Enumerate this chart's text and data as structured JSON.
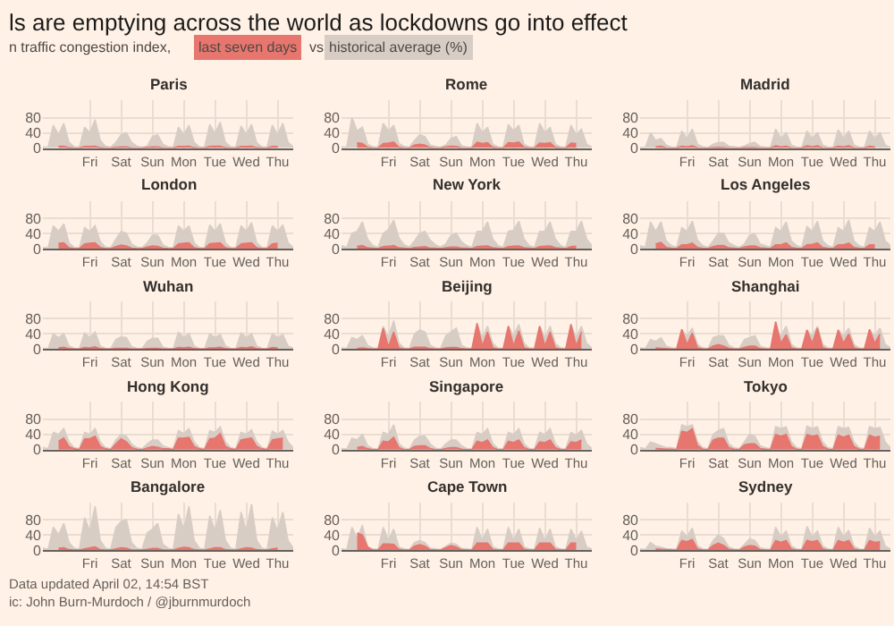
{
  "chart_data": [
    {
      "type": "area",
      "title": "Paris",
      "categories": [
        null,
        null,
        null,
        null,
        null,
        null,
        null,
        null,
        null,
        "Fri",
        null,
        null,
        null,
        null,
        null,
        "Sat",
        null,
        null,
        null,
        null,
        null,
        "Sun",
        null,
        null,
        null,
        null,
        null,
        "Mon",
        null,
        null,
        null,
        null,
        null,
        "Tue",
        null,
        null,
        null,
        null,
        null,
        "Wed",
        null,
        null,
        null,
        null,
        null,
        "Thu",
        null,
        null,
        null
      ],
      "ylim": [
        0,
        125
      ],
      "yticks": [
        0,
        40,
        80
      ],
      "grid": true,
      "series": [
        {
          "name": "historical average (%)",
          "color": "#d8cdc5",
          "values": [
            3,
            2,
            60,
            35,
            65,
            15,
            3,
            2,
            55,
            40,
            75,
            20,
            5,
            2,
            15,
            35,
            40,
            15,
            5,
            2,
            5,
            30,
            35,
            10,
            3,
            2,
            55,
            35,
            60,
            15,
            3,
            2,
            62,
            38,
            68,
            15,
            3,
            2,
            58,
            35,
            62,
            14,
            3,
            2,
            60,
            35,
            65,
            15,
            3
          ]
        },
        {
          "name": "last seven days",
          "color": "#e6766e",
          "values": [
            null,
            null,
            null,
            4,
            5,
            1,
            0,
            0,
            4,
            4,
            5,
            1,
            0,
            0,
            2,
            3,
            3,
            0,
            0,
            0,
            2,
            3,
            3,
            0,
            0,
            0,
            4,
            4,
            5,
            1,
            0,
            0,
            4,
            5,
            5,
            1,
            0,
            0,
            4,
            4,
            5,
            1,
            0,
            0,
            4,
            4,
            null,
            null,
            null
          ]
        }
      ]
    },
    {
      "type": "area",
      "title": "Rome",
      "categories": [
        null,
        null,
        null,
        null,
        null,
        null,
        null,
        null,
        null,
        "Fri",
        null,
        null,
        null,
        null,
        null,
        "Sat",
        null,
        null,
        null,
        null,
        null,
        "Sun",
        null,
        null,
        null,
        null,
        null,
        "Mon",
        null,
        null,
        null,
        null,
        null,
        "Tue",
        null,
        null,
        null,
        null,
        null,
        "Wed",
        null,
        null,
        null,
        null,
        null,
        "Thu",
        null,
        null,
        null
      ],
      "ylim": [
        0,
        125
      ],
      "yticks": [
        0,
        40,
        80
      ],
      "grid": true,
      "series": [
        {
          "color": "#d8cdc5",
          "values": [
            3,
            2,
            80,
            45,
            55,
            10,
            3,
            2,
            65,
            45,
            60,
            12,
            4,
            2,
            20,
            35,
            30,
            8,
            4,
            2,
            8,
            25,
            30,
            6,
            3,
            2,
            65,
            40,
            55,
            10,
            3,
            2,
            62,
            45,
            60,
            10,
            3,
            2,
            65,
            40,
            55,
            10,
            3,
            2,
            60,
            35,
            50,
            10,
            3
          ]
        },
        {
          "color": "#e6766e",
          "values": [
            null,
            null,
            null,
            14,
            12,
            2,
            0,
            0,
            12,
            13,
            16,
            2,
            0,
            0,
            8,
            10,
            8,
            1,
            0,
            0,
            3,
            5,
            4,
            0,
            0,
            0,
            15,
            12,
            14,
            2,
            0,
            0,
            14,
            13,
            16,
            2,
            0,
            0,
            13,
            12,
            14,
            2,
            0,
            0,
            13,
            12,
            null,
            null,
            null
          ]
        }
      ]
    },
    {
      "type": "area",
      "title": "Madrid",
      "categories": [
        null,
        null,
        null,
        null,
        null,
        null,
        null,
        null,
        null,
        "Fri",
        null,
        null,
        null,
        null,
        null,
        "Sat",
        null,
        null,
        null,
        null,
        null,
        "Sun",
        null,
        null,
        null,
        null,
        null,
        "Mon",
        null,
        null,
        null,
        null,
        null,
        "Tue",
        null,
        null,
        null,
        null,
        null,
        "Wed",
        null,
        null,
        null,
        null,
        null,
        "Thu",
        null,
        null,
        null
      ],
      "ylim": [
        0,
        125
      ],
      "yticks": [
        0,
        40,
        80
      ],
      "grid": true,
      "series": [
        {
          "color": "#d8cdc5",
          "values": [
            2,
            1,
            40,
            20,
            25,
            8,
            2,
            1,
            45,
            25,
            50,
            10,
            3,
            1,
            10,
            15,
            15,
            5,
            3,
            1,
            5,
            12,
            15,
            4,
            2,
            1,
            50,
            25,
            40,
            8,
            2,
            1,
            45,
            25,
            40,
            8,
            2,
            1,
            48,
            25,
            45,
            8,
            2,
            1,
            45,
            25,
            40,
            8,
            2
          ]
        },
        {
          "color": "#e6766e",
          "values": [
            null,
            null,
            null,
            3,
            5,
            0,
            0,
            0,
            5,
            3,
            6,
            0,
            0,
            0,
            1,
            2,
            1,
            0,
            0,
            0,
            1,
            1,
            1,
            0,
            0,
            0,
            6,
            3,
            5,
            0,
            0,
            0,
            6,
            3,
            6,
            0,
            0,
            0,
            5,
            3,
            6,
            0,
            0,
            0,
            5,
            3,
            null,
            null,
            null
          ]
        }
      ]
    },
    {
      "type": "area",
      "title": "London",
      "categories": [
        null,
        null,
        null,
        null,
        null,
        null,
        null,
        null,
        null,
        "Fri",
        null,
        null,
        null,
        null,
        null,
        "Sat",
        null,
        null,
        null,
        null,
        null,
        "Sun",
        null,
        null,
        null,
        null,
        null,
        "Mon",
        null,
        null,
        null,
        null,
        null,
        "Tue",
        null,
        null,
        null,
        null,
        null,
        "Wed",
        null,
        null,
        null,
        null,
        null,
        "Thu",
        null,
        null,
        null
      ],
      "ylim": [
        0,
        125
      ],
      "yticks": [
        0,
        40,
        80
      ],
      "grid": true,
      "series": [
        {
          "color": "#d8cdc5",
          "values": [
            3,
            2,
            60,
            45,
            65,
            15,
            3,
            2,
            55,
            45,
            60,
            18,
            4,
            2,
            25,
            45,
            40,
            12,
            4,
            2,
            15,
            35,
            35,
            10,
            3,
            2,
            60,
            45,
            60,
            15,
            3,
            2,
            62,
            45,
            65,
            15,
            3,
            2,
            60,
            45,
            68,
            15,
            3,
            2,
            60,
            45,
            62,
            15,
            3
          ]
        },
        {
          "color": "#e6766e",
          "values": [
            null,
            null,
            null,
            14,
            15,
            2,
            0,
            0,
            12,
            14,
            15,
            3,
            0,
            0,
            5,
            9,
            7,
            1,
            0,
            0,
            4,
            7,
            6,
            1,
            0,
            0,
            12,
            14,
            15,
            2,
            0,
            0,
            13,
            14,
            15,
            2,
            0,
            0,
            12,
            14,
            15,
            2,
            0,
            0,
            12,
            14,
            null,
            null,
            null
          ]
        }
      ]
    },
    {
      "type": "area",
      "title": "New York",
      "categories": [
        null,
        null,
        null,
        null,
        null,
        null,
        null,
        null,
        null,
        "Fri",
        null,
        null,
        null,
        null,
        null,
        "Sat",
        null,
        null,
        null,
        null,
        null,
        "Sun",
        null,
        null,
        null,
        null,
        null,
        "Mon",
        null,
        null,
        null,
        null,
        null,
        "Tue",
        null,
        null,
        null,
        null,
        null,
        "Wed",
        null,
        null,
        null,
        null,
        null,
        "Thu",
        null,
        null,
        null
      ],
      "ylim": [
        0,
        125
      ],
      "yticks": [
        0,
        40,
        80
      ],
      "grid": true,
      "series": [
        {
          "color": "#d8cdc5",
          "values": [
            8,
            3,
            40,
            45,
            70,
            25,
            8,
            3,
            40,
            50,
            75,
            28,
            10,
            4,
            20,
            40,
            45,
            22,
            10,
            4,
            12,
            35,
            40,
            18,
            8,
            3,
            45,
            45,
            70,
            25,
            8,
            3,
            45,
            48,
            72,
            25,
            8,
            3,
            45,
            45,
            70,
            25,
            8,
            3,
            45,
            45,
            72,
            25,
            8
          ]
        },
        {
          "color": "#e6766e",
          "values": [
            null,
            null,
            null,
            6,
            8,
            2,
            1,
            0,
            5,
            6,
            8,
            2,
            1,
            0,
            3,
            4,
            5,
            1,
            1,
            0,
            2,
            4,
            4,
            1,
            1,
            0,
            5,
            6,
            7,
            2,
            1,
            0,
            5,
            6,
            7,
            2,
            1,
            0,
            5,
            6,
            7,
            2,
            1,
            0,
            5,
            6,
            null,
            null,
            null
          ]
        }
      ]
    },
    {
      "type": "area",
      "title": "Los Angeles",
      "categories": [
        null,
        null,
        null,
        null,
        null,
        null,
        null,
        null,
        null,
        "Fri",
        null,
        null,
        null,
        null,
        null,
        "Sat",
        null,
        null,
        null,
        null,
        null,
        "Sun",
        null,
        null,
        null,
        null,
        null,
        "Mon",
        null,
        null,
        null,
        null,
        null,
        "Tue",
        null,
        null,
        null,
        null,
        null,
        "Wed",
        null,
        null,
        null,
        null,
        null,
        "Thu",
        null,
        null,
        null
      ],
      "ylim": [
        0,
        125
      ],
      "yticks": [
        0,
        40,
        80
      ],
      "grid": true,
      "series": [
        {
          "color": "#d8cdc5",
          "values": [
            8,
            3,
            70,
            45,
            70,
            20,
            8,
            3,
            55,
            45,
            72,
            22,
            8,
            3,
            20,
            40,
            40,
            15,
            8,
            3,
            12,
            35,
            38,
            12,
            8,
            3,
            55,
            45,
            70,
            20,
            8,
            3,
            58,
            45,
            72,
            20,
            8,
            3,
            55,
            45,
            75,
            20,
            8,
            3,
            55,
            45,
            70,
            20,
            8
          ]
        },
        {
          "color": "#e6766e",
          "values": [
            null,
            null,
            null,
            12,
            16,
            3,
            1,
            0,
            10,
            10,
            14,
            3,
            1,
            0,
            5,
            8,
            8,
            2,
            1,
            0,
            4,
            7,
            7,
            2,
            1,
            0,
            10,
            10,
            15,
            3,
            1,
            0,
            10,
            11,
            15,
            3,
            1,
            0,
            10,
            10,
            14,
            3,
            1,
            0,
            10,
            10,
            null,
            null,
            null
          ]
        }
      ]
    },
    {
      "type": "area",
      "title": "Wuhan",
      "categories": [
        null,
        null,
        null,
        null,
        null,
        null,
        null,
        null,
        null,
        "Fri",
        null,
        null,
        null,
        null,
        null,
        "Sat",
        null,
        null,
        null,
        null,
        null,
        "Sun",
        null,
        null,
        null,
        null,
        null,
        "Mon",
        null,
        null,
        null,
        null,
        null,
        "Tue",
        null,
        null,
        null,
        null,
        null,
        "Wed",
        null,
        null,
        null,
        null,
        null,
        "Thu",
        null,
        null,
        null
      ],
      "ylim": [
        0,
        125
      ],
      "yticks": [
        0,
        40,
        80
      ],
      "grid": true,
      "series": [
        {
          "color": "#d8cdc5",
          "values": [
            2,
            1,
            40,
            30,
            40,
            8,
            2,
            1,
            42,
            30,
            45,
            8,
            2,
            1,
            25,
            32,
            30,
            6,
            2,
            1,
            20,
            28,
            28,
            5,
            2,
            1,
            45,
            30,
            40,
            8,
            2,
            1,
            40,
            30,
            38,
            8,
            2,
            1,
            42,
            30,
            40,
            8,
            2,
            1,
            40,
            30,
            38,
            8,
            2
          ]
        },
        {
          "color": "#e6766e",
          "values": [
            null,
            null,
            null,
            3,
            5,
            1,
            0,
            0,
            4,
            3,
            6,
            1,
            0,
            0,
            2,
            2,
            2,
            0,
            0,
            0,
            1,
            2,
            2,
            0,
            0,
            0,
            4,
            3,
            5,
            1,
            0,
            0,
            3,
            3,
            5,
            1,
            0,
            0,
            4,
            3,
            6,
            1,
            0,
            0,
            4,
            3,
            null,
            null,
            null
          ]
        }
      ]
    },
    {
      "type": "area",
      "title": "Beijing",
      "categories": [
        null,
        null,
        null,
        null,
        null,
        null,
        null,
        null,
        null,
        "Fri",
        null,
        null,
        null,
        null,
        null,
        "Sat",
        null,
        null,
        null,
        null,
        null,
        "Sun",
        null,
        null,
        null,
        null,
        null,
        "Mon",
        null,
        null,
        null,
        null,
        null,
        "Tue",
        null,
        null,
        null,
        null,
        null,
        "Wed",
        null,
        null,
        null,
        null,
        null,
        "Thu",
        null,
        null,
        null
      ],
      "ylim": [
        0,
        125
      ],
      "yticks": [
        0,
        40,
        80
      ],
      "grid": true,
      "series": [
        {
          "color": "#d8cdc5",
          "values": [
            3,
            1,
            30,
            25,
            35,
            10,
            3,
            1,
            60,
            30,
            75,
            15,
            3,
            1,
            40,
            50,
            45,
            10,
            3,
            1,
            35,
            45,
            55,
            10,
            3,
            1,
            65,
            30,
            60,
            15,
            3,
            1,
            60,
            35,
            65,
            15,
            3,
            1,
            60,
            30,
            60,
            15,
            3,
            1,
            65,
            30,
            60,
            15,
            3
          ]
        },
        {
          "color": "#e6766e",
          "values": [
            null,
            null,
            null,
            2,
            3,
            1,
            0,
            0,
            55,
            5,
            45,
            3,
            0,
            0,
            5,
            5,
            5,
            1,
            0,
            0,
            3,
            4,
            4,
            1,
            0,
            0,
            68,
            8,
            45,
            3,
            0,
            0,
            60,
            8,
            48,
            3,
            0,
            0,
            60,
            8,
            45,
            3,
            0,
            0,
            65,
            8,
            45,
            null,
            null
          ]
        }
      ]
    },
    {
      "type": "area",
      "title": "Shanghai",
      "categories": [
        null,
        null,
        null,
        null,
        null,
        null,
        null,
        null,
        null,
        "Fri",
        null,
        null,
        null,
        null,
        null,
        "Sat",
        null,
        null,
        null,
        null,
        null,
        "Sun",
        null,
        null,
        null,
        null,
        null,
        "Mon",
        null,
        null,
        null,
        null,
        null,
        "Tue",
        null,
        null,
        null,
        null,
        null,
        "Wed",
        null,
        null,
        null,
        null,
        null,
        "Thu",
        null,
        null,
        null
      ],
      "ylim": [
        0,
        125
      ],
      "yticks": [
        0,
        40,
        80
      ],
      "grid": true,
      "series": [
        {
          "color": "#d8cdc5",
          "values": [
            3,
            1,
            25,
            20,
            30,
            8,
            3,
            1,
            50,
            35,
            55,
            12,
            3,
            1,
            30,
            35,
            35,
            10,
            3,
            1,
            25,
            30,
            35,
            8,
            3,
            1,
            50,
            35,
            60,
            12,
            3,
            1,
            50,
            35,
            60,
            12,
            3,
            1,
            50,
            35,
            55,
            12,
            3,
            1,
            50,
            35,
            55,
            12,
            3
          ]
        },
        {
          "color": "#e6766e",
          "values": [
            null,
            null,
            null,
            3,
            2,
            1,
            0,
            0,
            52,
            12,
            42,
            3,
            0,
            0,
            8,
            12,
            8,
            2,
            0,
            0,
            4,
            8,
            8,
            1,
            0,
            0,
            72,
            15,
            38,
            3,
            0,
            0,
            50,
            15,
            55,
            3,
            0,
            0,
            50,
            15,
            40,
            3,
            0,
            0,
            52,
            15,
            40,
            null,
            null
          ]
        }
      ]
    },
    {
      "type": "area",
      "title": "Hong Kong",
      "categories": [
        null,
        null,
        null,
        null,
        null,
        null,
        null,
        null,
        null,
        "Fri",
        null,
        null,
        null,
        null,
        null,
        "Sat",
        null,
        null,
        null,
        null,
        null,
        "Sun",
        null,
        null,
        null,
        null,
        null,
        "Mon",
        null,
        null,
        null,
        null,
        null,
        "Tue",
        null,
        null,
        null,
        null,
        null,
        "Wed",
        null,
        null,
        null,
        null,
        null,
        "Thu",
        null,
        null,
        null
      ],
      "ylim": [
        0,
        125
      ],
      "yticks": [
        0,
        40,
        80
      ],
      "grid": true,
      "series": [
        {
          "color": "#d8cdc5",
          "values": [
            5,
            2,
            45,
            40,
            55,
            20,
            5,
            2,
            45,
            40,
            55,
            20,
            5,
            2,
            25,
            40,
            35,
            15,
            5,
            2,
            15,
            25,
            25,
            10,
            5,
            2,
            50,
            42,
            55,
            20,
            5,
            2,
            50,
            45,
            60,
            20,
            5,
            2,
            45,
            40,
            52,
            20,
            5,
            2,
            48,
            40,
            50,
            20,
            5
          ]
        },
        {
          "color": "#e6766e",
          "values": [
            null,
            null,
            null,
            22,
            30,
            8,
            2,
            0,
            28,
            28,
            35,
            8,
            2,
            0,
            15,
            28,
            20,
            5,
            1,
            0,
            4,
            8,
            6,
            2,
            2,
            0,
            30,
            30,
            32,
            8,
            2,
            0,
            28,
            30,
            42,
            8,
            2,
            0,
            25,
            28,
            30,
            8,
            2,
            0,
            25,
            28,
            30,
            null,
            null
          ]
        }
      ]
    },
    {
      "type": "area",
      "title": "Singapore",
      "categories": [
        null,
        null,
        null,
        null,
        null,
        null,
        null,
        null,
        null,
        "Fri",
        null,
        null,
        null,
        null,
        null,
        "Sat",
        null,
        null,
        null,
        null,
        null,
        "Sun",
        null,
        null,
        null,
        null,
        null,
        "Mon",
        null,
        null,
        null,
        null,
        null,
        "Tue",
        null,
        null,
        null,
        null,
        null,
        "Wed",
        null,
        null,
        null,
        null,
        null,
        "Thu",
        null,
        null,
        null
      ],
      "ylim": [
        0,
        125
      ],
      "yticks": [
        0,
        40,
        80
      ],
      "grid": true,
      "series": [
        {
          "color": "#d8cdc5",
          "values": [
            3,
            1,
            30,
            25,
            40,
            10,
            3,
            1,
            45,
            40,
            65,
            15,
            4,
            1,
            25,
            35,
            35,
            15,
            4,
            1,
            15,
            25,
            25,
            10,
            3,
            1,
            45,
            40,
            55,
            15,
            3,
            1,
            45,
            40,
            55,
            15,
            3,
            1,
            45,
            40,
            55,
            15,
            3,
            1,
            45,
            38,
            50,
            15,
            3
          ]
        },
        {
          "color": "#e6766e",
          "values": [
            null,
            null,
            null,
            5,
            8,
            2,
            0,
            0,
            22,
            20,
            32,
            5,
            0,
            0,
            8,
            10,
            10,
            3,
            0,
            0,
            3,
            5,
            5,
            1,
            0,
            0,
            22,
            18,
            25,
            5,
            0,
            0,
            22,
            18,
            25,
            5,
            0,
            0,
            20,
            18,
            25,
            5,
            0,
            0,
            20,
            18,
            25,
            null,
            null
          ]
        }
      ]
    },
    {
      "type": "area",
      "title": "Tokyo",
      "categories": [
        null,
        null,
        null,
        null,
        null,
        null,
        null,
        null,
        null,
        "Fri",
        null,
        null,
        null,
        null,
        null,
        "Sat",
        null,
        null,
        null,
        null,
        null,
        "Sun",
        null,
        null,
        null,
        null,
        null,
        "Mon",
        null,
        null,
        null,
        null,
        null,
        "Tue",
        null,
        null,
        null,
        null,
        null,
        "Wed",
        null,
        null,
        null,
        null,
        null,
        "Thu",
        null,
        null,
        null
      ],
      "ylim": [
        0,
        125
      ],
      "yticks": [
        0,
        40,
        80
      ],
      "grid": true,
      "series": [
        {
          "color": "#d8cdc5",
          "values": [
            5,
            2,
            20,
            15,
            10,
            5,
            5,
            2,
            65,
            60,
            65,
            20,
            5,
            2,
            40,
            50,
            55,
            15,
            5,
            2,
            20,
            40,
            35,
            10,
            5,
            2,
            60,
            55,
            60,
            20,
            5,
            2,
            62,
            55,
            60,
            20,
            5,
            2,
            60,
            55,
            58,
            20,
            5,
            2,
            60,
            55,
            58,
            20,
            5
          ]
        },
        {
          "color": "#e6766e",
          "values": [
            null,
            null,
            null,
            3,
            2,
            1,
            1,
            0,
            48,
            45,
            55,
            10,
            1,
            0,
            25,
            30,
            30,
            5,
            1,
            0,
            12,
            15,
            15,
            3,
            1,
            0,
            40,
            35,
            40,
            8,
            1,
            0,
            40,
            35,
            38,
            8,
            1,
            0,
            38,
            32,
            38,
            8,
            1,
            0,
            38,
            32,
            35,
            null,
            null
          ]
        }
      ]
    },
    {
      "type": "area",
      "title": "Bangalore",
      "categories": [
        null,
        null,
        null,
        null,
        null,
        null,
        null,
        null,
        null,
        "Fri",
        null,
        null,
        null,
        null,
        null,
        "Sat",
        null,
        null,
        null,
        null,
        null,
        "Sun",
        null,
        null,
        null,
        null,
        null,
        "Mon",
        null,
        null,
        null,
        null,
        null,
        "Tue",
        null,
        null,
        null,
        null,
        null,
        "Wed",
        null,
        null,
        null,
        null,
        null,
        "Thu",
        null,
        null,
        null
      ],
      "ylim": [
        0,
        125
      ],
      "yticks": [
        0,
        40,
        80
      ],
      "grid": true,
      "series": [
        {
          "color": "#d8cdc5",
          "values": [
            5,
            2,
            60,
            40,
            70,
            20,
            5,
            2,
            85,
            50,
            115,
            25,
            5,
            2,
            60,
            75,
            80,
            20,
            5,
            2,
            45,
            55,
            70,
            15,
            5,
            2,
            95,
            55,
            115,
            25,
            5,
            2,
            90,
            50,
            105,
            25,
            5,
            2,
            100,
            50,
            120,
            25,
            5,
            2,
            85,
            50,
            100,
            25,
            5
          ]
        },
        {
          "color": "#e6766e",
          "values": [
            null,
            null,
            null,
            5,
            6,
            1,
            0,
            0,
            3,
            6,
            8,
            1,
            0,
            0,
            3,
            6,
            5,
            0,
            0,
            0,
            2,
            4,
            4,
            0,
            0,
            0,
            4,
            7,
            6,
            1,
            0,
            0,
            3,
            6,
            6,
            1,
            0,
            0,
            3,
            6,
            5,
            1,
            0,
            0,
            3,
            5,
            null,
            null,
            null
          ]
        }
      ]
    },
    {
      "type": "area",
      "title": "Cape Town",
      "categories": [
        null,
        null,
        null,
        null,
        null,
        null,
        null,
        null,
        null,
        "Fri",
        null,
        null,
        null,
        null,
        null,
        "Sat",
        null,
        null,
        null,
        null,
        null,
        "Sun",
        null,
        null,
        null,
        null,
        null,
        "Mon",
        null,
        null,
        null,
        null,
        null,
        "Tue",
        null,
        null,
        null,
        null,
        null,
        "Wed",
        null,
        null,
        null,
        null,
        null,
        "Thu",
        null,
        null,
        null
      ],
      "ylim": [
        0,
        125
      ],
      "yticks": [
        0,
        40,
        80
      ],
      "grid": true,
      "series": [
        {
          "color": "#d8cdc5",
          "values": [
            3,
            1,
            60,
            30,
            65,
            8,
            3,
            1,
            60,
            25,
            55,
            8,
            3,
            1,
            20,
            25,
            20,
            5,
            3,
            1,
            10,
            18,
            15,
            4,
            3,
            1,
            60,
            25,
            55,
            8,
            3,
            1,
            60,
            25,
            55,
            8,
            3,
            1,
            58,
            25,
            55,
            8,
            3,
            1,
            55,
            25,
            50,
            8,
            3
          ]
        },
        {
          "color": "#e6766e",
          "values": [
            null,
            null,
            null,
            45,
            40,
            8,
            0,
            0,
            16,
            16,
            15,
            2,
            0,
            0,
            10,
            14,
            10,
            1,
            0,
            0,
            6,
            12,
            8,
            1,
            0,
            0,
            18,
            18,
            18,
            2,
            0,
            0,
            18,
            18,
            18,
            2,
            0,
            0,
            18,
            18,
            18,
            2,
            0,
            0,
            18,
            18,
            null,
            null,
            null
          ]
        }
      ]
    },
    {
      "type": "area",
      "title": "Sydney",
      "categories": [
        null,
        null,
        null,
        null,
        null,
        null,
        null,
        null,
        null,
        "Fri",
        null,
        null,
        null,
        null,
        null,
        "Sat",
        null,
        null,
        null,
        null,
        null,
        "Sun",
        null,
        null,
        null,
        null,
        null,
        "Mon",
        null,
        null,
        null,
        null,
        null,
        "Tue",
        null,
        null,
        null,
        null,
        null,
        "Wed",
        null,
        null,
        null,
        null,
        null,
        "Thu",
        null,
        null,
        null
      ],
      "ylim": [
        0,
        125
      ],
      "yticks": [
        0,
        40,
        80
      ],
      "grid": true,
      "series": [
        {
          "color": "#d8cdc5",
          "values": [
            3,
            1,
            20,
            10,
            8,
            3,
            3,
            1,
            50,
            35,
            58,
            10,
            3,
            1,
            25,
            40,
            30,
            8,
            3,
            1,
            15,
            30,
            25,
            6,
            3,
            1,
            60,
            35,
            50,
            10,
            3,
            1,
            62,
            35,
            50,
            10,
            3,
            1,
            60,
            35,
            52,
            10,
            3,
            1,
            58,
            35,
            50,
            10,
            3
          ]
        },
        {
          "color": "#e6766e",
          "values": [
            null,
            null,
            null,
            3,
            2,
            1,
            0,
            0,
            25,
            22,
            28,
            3,
            0,
            0,
            12,
            18,
            12,
            2,
            0,
            0,
            8,
            12,
            10,
            1,
            0,
            0,
            25,
            20,
            25,
            3,
            0,
            0,
            25,
            22,
            25,
            3,
            0,
            0,
            25,
            20,
            25,
            3,
            0,
            0,
            25,
            20,
            22,
            null,
            null
          ]
        }
      ]
    },
    {
      "type": "other",
      "title": "ls are emptying across the world as lockdowns go into effect",
      "subtitle": "n traffic congestion index,",
      "annotations": [
        "vs",
        "Data updated April 02, 14:54 BST",
        "ic: John Burn-Murdoch / @jburnmurdoch"
      ]
    }
  ]
}
